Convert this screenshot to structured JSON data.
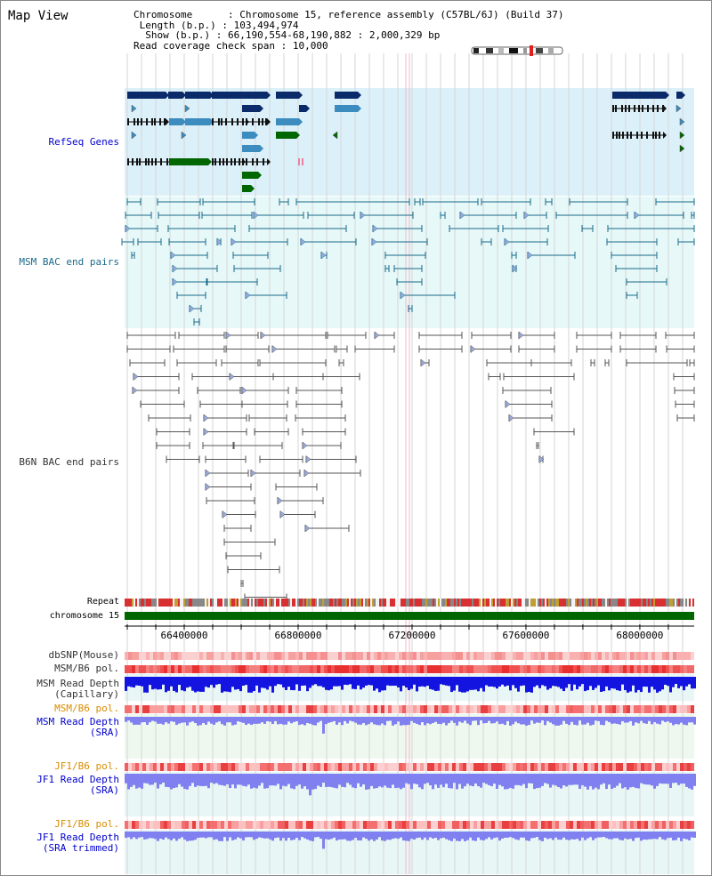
{
  "title": "Map View",
  "info": {
    "chromosome_label": "Chromosome",
    "chromosome_value": "Chromosome 15, reference assembly (C57BL/6J) (Build 37)",
    "length_label": "Length (b.p.)",
    "length_value": "103,494,974",
    "show_label": "Show (b.p.)",
    "show_value": "66,190,554-68,190,882 : 2,000,329 bp",
    "coverage_label": "Read coverage check span",
    "coverage_value": "10,000"
  },
  "tracks": {
    "refseq": "RefSeq Genes",
    "msm_bac": "MSM BAC end pairs",
    "b6n_bac": "B6N BAC end pairs",
    "repeat": "Repeat",
    "chromosome": "chromosome 15",
    "dbsnp": "dbSNP(Mouse)",
    "msm_b6_pol": "MSM/B6 pol.",
    "msm_depth_cap_1": "MSM Read Depth",
    "msm_depth_cap_2": "(Capillary)",
    "msm_b6_pol_2": "MSM/B6 pol.",
    "msm_depth_sra_1": "MSM Read Depth",
    "msm_depth_sra_2": "(SRA)",
    "jf1_b6_pol": "JF1/B6 pol.",
    "jf1_depth_sra_1": "JF1 Read Depth",
    "jf1_depth_sra_2": "(SRA)",
    "jf1_b6_pol_2": "JF1/B6 pol.",
    "jf1_depth_trim_1": "JF1 Read Depth",
    "jf1_depth_trim_2": "(SRA trimmed)"
  },
  "axis": {
    "ticks": [
      "66400000",
      "66800000",
      "67200000",
      "67600000",
      "68000000"
    ],
    "tick_values": [
      66400000,
      66800000,
      67200000,
      67600000,
      68000000
    ],
    "start": 66190554,
    "end": 68190882
  },
  "colors": {
    "refseq_bg": "#dcf0fa",
    "msm_bg": "#e6f8f8",
    "depth_bg": "#eef8ee",
    "gene_dark": "#0a2a6a",
    "gene_light": "#3c8cc0",
    "gene_green": "#006600",
    "msm_line": "#1a6a8a",
    "b6n_line": "#555555",
    "chrom_bar": "#006600",
    "depth_blue": "#1414e0",
    "depth_purple": "#8080f0"
  }
}
